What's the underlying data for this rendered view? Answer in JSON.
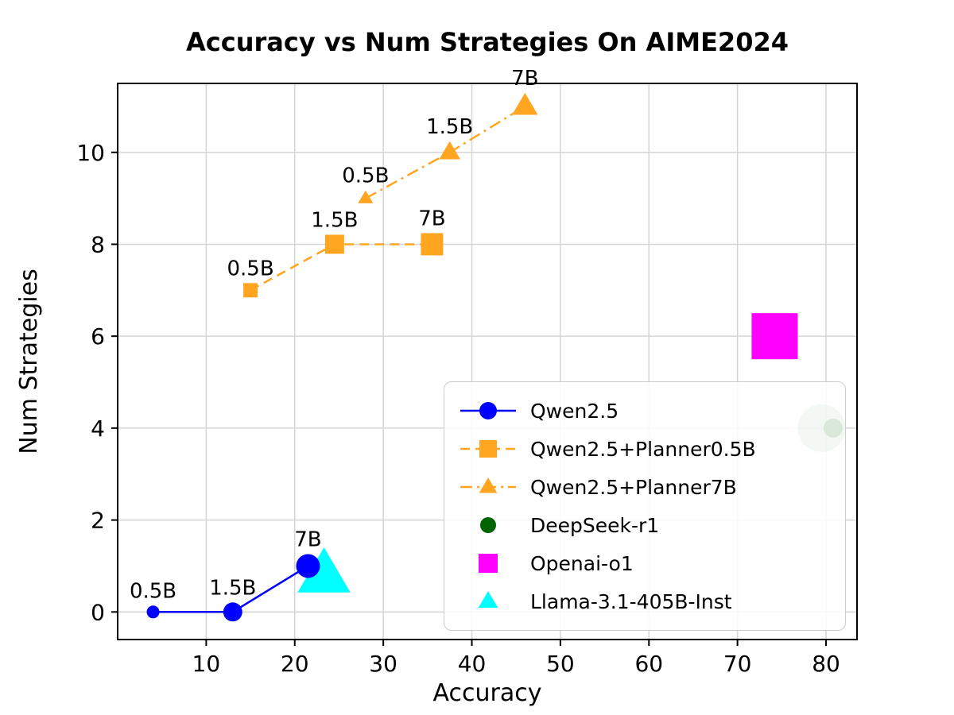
{
  "chart_data": {
    "type": "scatter",
    "title": "Accuracy vs Num Strategies On AIME2024",
    "xlabel": "Accuracy",
    "ylabel": "Num Strategies",
    "xlim": [
      0,
      83.5
    ],
    "ylim": [
      -0.6,
      11.5
    ],
    "xticks": [
      10,
      20,
      30,
      40,
      50,
      60,
      70,
      80
    ],
    "yticks": [
      0,
      2,
      4,
      6,
      8,
      10
    ],
    "grid": true,
    "legend_position": "lower right",
    "series": [
      {
        "name": "Qwen2.5",
        "color": "#0000ff",
        "marker": "circle",
        "line_style": "solid",
        "legend_size": 11,
        "points": [
          {
            "x": 4,
            "y": 0,
            "size": 8,
            "label": "0.5B"
          },
          {
            "x": 13,
            "y": 0,
            "size": 12,
            "label": "1.5B"
          },
          {
            "x": 21.5,
            "y": 1,
            "size": 15,
            "label": "7B"
          }
        ]
      },
      {
        "name": "Qwen2.5+Planner0.5B",
        "color": "#ffa520",
        "marker": "square",
        "line_style": "dashed",
        "legend_size": 11,
        "points": [
          {
            "x": 15,
            "y": 7,
            "size": 9,
            "label": "0.5B"
          },
          {
            "x": 24.5,
            "y": 8,
            "size": 12,
            "label": "1.5B"
          },
          {
            "x": 35.5,
            "y": 8,
            "size": 14,
            "label": "7B"
          }
        ]
      },
      {
        "name": "Qwen2.5+Planner7B",
        "color": "#ffa520",
        "marker": "triangle",
        "line_style": "dashdot",
        "legend_size": 12,
        "points": [
          {
            "x": 28,
            "y": 9,
            "size": 10,
            "label": "0.5B"
          },
          {
            "x": 37.5,
            "y": 10,
            "size": 14,
            "label": "1.5B"
          },
          {
            "x": 46,
            "y": 11,
            "size": 17,
            "label": "7B"
          }
        ]
      },
      {
        "name": "DeepSeek-r1",
        "color": "#006400",
        "marker": "circle",
        "line_style": "none",
        "legend_size": 10,
        "points": [
          {
            "x": 79.5,
            "y": 4,
            "size": 30,
            "opacity": 0.3
          },
          {
            "x": 80.8,
            "y": 4,
            "size": 12
          }
        ]
      },
      {
        "name": "Openai-o1",
        "color": "#ff00ff",
        "marker": "square",
        "line_style": "none",
        "legend_size": 12,
        "points": [
          {
            "x": 74.2,
            "y": 6,
            "size": 29
          }
        ]
      },
      {
        "name": "Llama-3.1-405B-Inst",
        "color": "#00ffff",
        "marker": "triangle",
        "line_style": "none",
        "legend_size": 13,
        "points": [
          {
            "x": 23.3,
            "y": 0.8,
            "size": 35
          }
        ]
      }
    ]
  }
}
